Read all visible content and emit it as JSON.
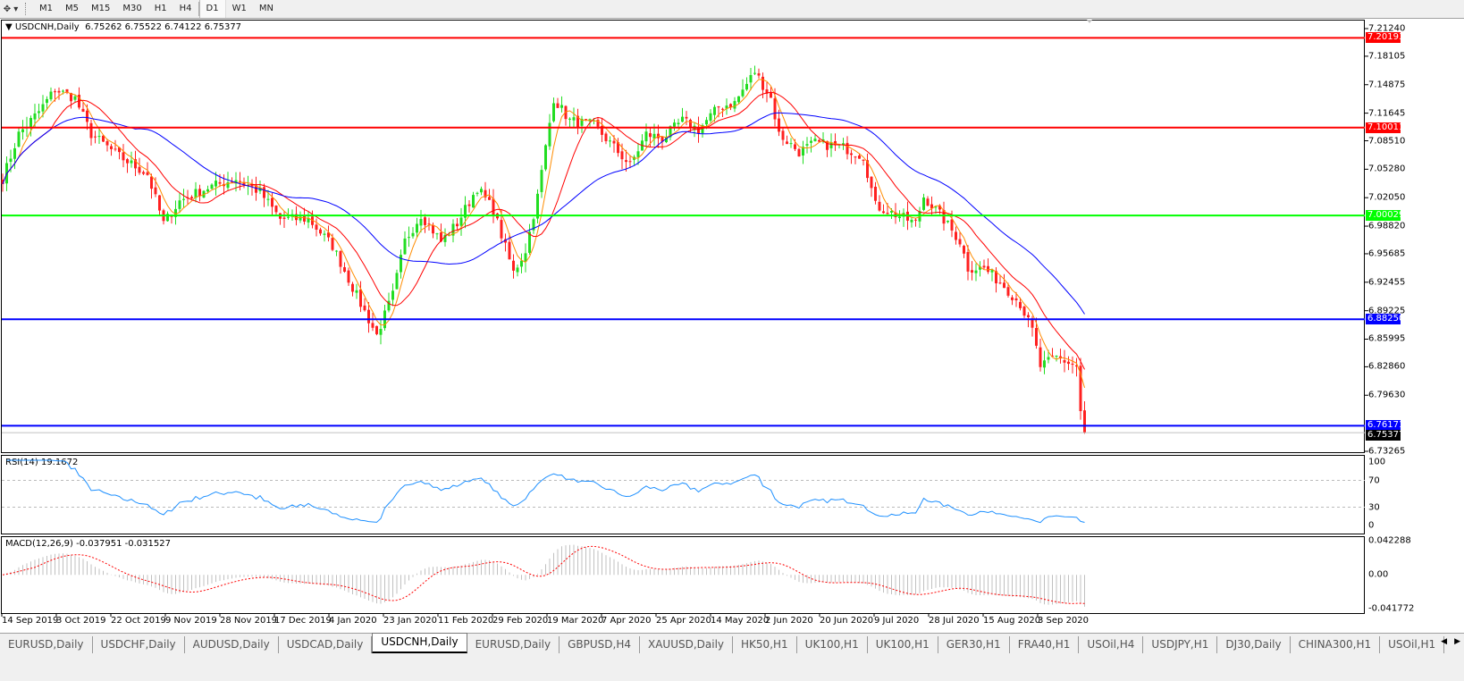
{
  "toolbar": {
    "tool_icon": "crosshair-dropdown-icon",
    "timeframes": [
      {
        "label": "M1",
        "active": false
      },
      {
        "label": "M5",
        "active": false
      },
      {
        "label": "M15",
        "active": false
      },
      {
        "label": "M30",
        "active": false
      },
      {
        "label": "H1",
        "active": false
      },
      {
        "label": "H4",
        "active": false
      },
      {
        "label": "D1",
        "active": true
      },
      {
        "label": "W1",
        "active": false
      },
      {
        "label": "MN",
        "active": false
      }
    ]
  },
  "main_chart": {
    "title": "USDCNH,Daily",
    "ohlc": "6.75262 6.75522 6.74122 6.75377",
    "price_axis": [
      "7.21240",
      "7.18105",
      "7.14875",
      "7.11645",
      "7.08510",
      "7.05280",
      "7.02050",
      "6.98820",
      "6.95685",
      "6.92455",
      "6.89225",
      "6.85995",
      "6.82860",
      "6.79630",
      "6.73265"
    ],
    "levels": [
      {
        "label": "7.20193",
        "price": 7.20193,
        "color": "#ff0000"
      },
      {
        "label": "7.10011",
        "price": 7.10011,
        "color": "#ff0000"
      },
      {
        "label": "7.00029",
        "price": 7.00029,
        "color": "#00ff00"
      },
      {
        "label": "6.88250",
        "price": 6.8825,
        "color": "#0000ff"
      },
      {
        "label": "6.76171",
        "price": 6.76171,
        "color": "#0000ff"
      }
    ],
    "current_price": {
      "label": "6.75377",
      "price": 6.75377,
      "color": "#000000"
    },
    "colors": {
      "bull": "#22dd22",
      "bear": "#ff2020",
      "ma_fast": "#ff8c00",
      "ma_mid": "#ff0000",
      "ma_slow": "#0000ff"
    }
  },
  "chart_data": {
    "type": "candlestick",
    "price_range": [
      6.73265,
      7.2124
    ],
    "close_path": [
      [
        0,
        7.042
      ],
      [
        4,
        7.0927
      ],
      [
        9,
        7.1181
      ],
      [
        13,
        7.1434
      ],
      [
        18,
        7.1333
      ],
      [
        22,
        7.0927
      ],
      [
        29,
        7.0674
      ],
      [
        36,
        7.0471
      ],
      [
        40,
        6.9913
      ],
      [
        44,
        7.0167
      ],
      [
        51,
        7.0319
      ],
      [
        58,
        7.042
      ],
      [
        64,
        7.0268
      ],
      [
        69,
        6.9964
      ],
      [
        76,
        6.9964
      ],
      [
        82,
        6.9659
      ],
      [
        89,
        6.9
      ],
      [
        93,
        6.8645
      ],
      [
        97,
        6.9102
      ],
      [
        100,
        6.971
      ],
      [
        104,
        7.0014
      ],
      [
        109,
        6.971
      ],
      [
        113,
        6.9913
      ],
      [
        118,
        7.0319
      ],
      [
        122,
        7.0065
      ],
      [
        127,
        6.9355
      ],
      [
        130,
        6.9609
      ],
      [
        133,
        7.0217
      ],
      [
        137,
        7.1333
      ],
      [
        141,
        7.1079
      ],
      [
        147,
        7.1029
      ],
      [
        151,
        7.0826
      ],
      [
        156,
        7.0572
      ],
      [
        160,
        7.0927
      ],
      [
        164,
        7.0877
      ],
      [
        169,
        7.1079
      ],
      [
        173,
        7.0978
      ],
      [
        178,
        7.1232
      ],
      [
        182,
        7.1282
      ],
      [
        187,
        7.1637
      ],
      [
        191,
        7.1333
      ],
      [
        193,
        7.0927
      ],
      [
        198,
        7.0724
      ],
      [
        202,
        7.0826
      ],
      [
        209,
        7.0775
      ],
      [
        214,
        7.0674
      ],
      [
        217,
        7.0116
      ],
      [
        222,
        7.0014
      ],
      [
        227,
        6.9913
      ],
      [
        229,
        7.0217
      ],
      [
        233,
        7.0014
      ],
      [
        238,
        6.971
      ],
      [
        240,
        6.9406
      ],
      [
        244,
        6.9406
      ],
      [
        249,
        6.9203
      ],
      [
        253,
        6.9
      ],
      [
        256,
        6.8696
      ],
      [
        258,
        6.829
      ],
      [
        262,
        6.8392
      ],
      [
        267,
        6.829
      ],
      [
        268,
        6.7783
      ],
      [
        269,
        6.7538
      ]
    ],
    "date_labels": [
      "14 Sep 2019",
      "3 Oct 2019",
      "22 Oct 2019",
      "9 Nov 2019",
      "28 Nov 2019",
      "17 Dec 2019",
      "4 Jan 2020",
      "23 Jan 2020",
      "11 Feb 2020",
      "29 Feb 2020",
      "19 Mar 2020",
      "7 Apr 2020",
      "25 Apr 2020",
      "14 May 2020",
      "2 Jun 2020",
      "20 Jun 2020",
      "9 Jul 2020",
      "28 Jul 2020",
      "15 Aug 2020",
      "3 Sep 2020"
    ]
  },
  "rsi": {
    "title": "RSI(14) 19.1672",
    "axis": [
      "100",
      "70",
      "30",
      "0"
    ],
    "levels": [
      70,
      30
    ],
    "color": "#1e90ff"
  },
  "macd": {
    "title": "MACD(12,26,9) -0.037951 -0.031527",
    "axis": [
      "0.042288",
      "0.00",
      "-0.041772"
    ],
    "range": [
      -0.041772,
      0.042288
    ],
    "histogram_color": "#c0c0c0",
    "signal_color": "#ff0000"
  },
  "tabs": [
    {
      "label": "EURUSD,Daily",
      "active": false
    },
    {
      "label": "USDCHF,Daily",
      "active": false
    },
    {
      "label": "AUDUSD,Daily",
      "active": false
    },
    {
      "label": "USDCAD,Daily",
      "active": false
    },
    {
      "label": "USDCNH,Daily",
      "active": true
    },
    {
      "label": "EURUSD,Daily",
      "active": false
    },
    {
      "label": "GBPUSD,H4",
      "active": false
    },
    {
      "label": "XAUUSD,Daily",
      "active": false
    },
    {
      "label": "HK50,H1",
      "active": false
    },
    {
      "label": "UK100,H1",
      "active": false
    },
    {
      "label": "UK100,H1",
      "active": false
    },
    {
      "label": "GER30,H1",
      "active": false
    },
    {
      "label": "FRA40,H1",
      "active": false
    },
    {
      "label": "USOil,H4",
      "active": false
    },
    {
      "label": "USDJPY,H1",
      "active": false
    },
    {
      "label": "DJ30,Daily",
      "active": false
    },
    {
      "label": "CHINA300,H1",
      "active": false
    },
    {
      "label": "USOil,H1",
      "active": false
    }
  ]
}
